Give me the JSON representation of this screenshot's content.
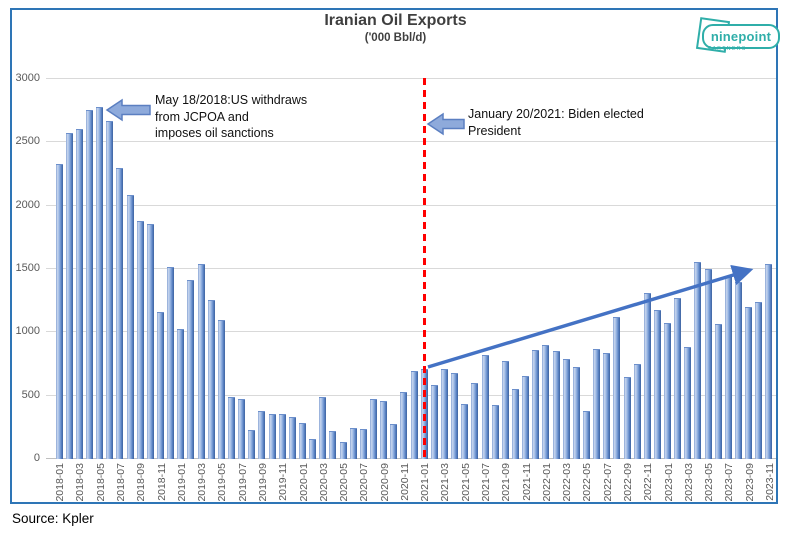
{
  "title": "Iranian Oil Exports",
  "subtitle": "('000 Bbl/d)",
  "source": "Source: Kpler",
  "logo": {
    "name": "ninepoint",
    "sub": "PARTNERS",
    "color": "#2FAEA9"
  },
  "annotations": {
    "jcpoa": {
      "text": "May 18/2018:US withdraws\nfrom JCPOA and\nimposes oil sanctions"
    },
    "biden": {
      "text": "January 20/2021: Biden elected\nPresident"
    }
  },
  "colors": {
    "box_border": "#2E75B6",
    "grid": "#D9D9D9",
    "bar_main": "#4472C4",
    "event_line_red": "#FF0000",
    "trend_arrow_blue": "#4472C4",
    "block_arrow_fill": "#8EAADB",
    "block_arrow_stroke": "#5b7fc1"
  },
  "chart_data": {
    "type": "bar",
    "title": "Iranian Oil Exports",
    "ylabel": "('000 Bbl/d)",
    "ylim": [
      0,
      3000
    ],
    "ytick_step": 500,
    "x_tick_every": 2,
    "grid": true,
    "categories": [
      "2018-01",
      "2018-02",
      "2018-03",
      "2018-04",
      "2018-05",
      "2018-06",
      "2018-07",
      "2018-08",
      "2018-09",
      "2018-10",
      "2018-11",
      "2018-12",
      "2019-01",
      "2019-02",
      "2019-03",
      "2019-04",
      "2019-05",
      "2019-06",
      "2019-07",
      "2019-08",
      "2019-09",
      "2019-10",
      "2019-11",
      "2019-12",
      "2020-01",
      "2020-02",
      "2020-03",
      "2020-04",
      "2020-05",
      "2020-06",
      "2020-07",
      "2020-08",
      "2020-09",
      "2020-10",
      "2020-11",
      "2020-12",
      "2021-01",
      "2021-02",
      "2021-03",
      "2021-04",
      "2021-05",
      "2021-06",
      "2021-07",
      "2021-08",
      "2021-09",
      "2021-10",
      "2021-11",
      "2021-12",
      "2022-01",
      "2022-02",
      "2022-03",
      "2022-04",
      "2022-05",
      "2022-06",
      "2022-07",
      "2022-08",
      "2022-09",
      "2022-10",
      "2022-11",
      "2022-12",
      "2023-01",
      "2023-02",
      "2023-03",
      "2023-04",
      "2023-05",
      "2023-06",
      "2023-07",
      "2023-08",
      "2023-09",
      "2023-10",
      "2023-11"
    ],
    "values": [
      2320,
      2570,
      2600,
      2750,
      2775,
      2660,
      2290,
      2075,
      1870,
      1845,
      1150,
      1510,
      1020,
      1405,
      1530,
      1250,
      1090,
      480,
      465,
      220,
      370,
      345,
      350,
      325,
      280,
      150,
      480,
      210,
      125,
      235,
      230,
      465,
      450,
      265,
      525,
      690,
      705,
      575,
      705,
      675,
      425,
      595,
      815,
      420,
      765,
      545,
      645,
      850,
      890,
      845,
      785,
      715,
      375,
      860,
      830,
      1115,
      640,
      745,
      1300,
      1170,
      1070,
      1265,
      880,
      1545,
      1490,
      1060,
      1440,
      1390,
      1190,
      1230,
      1530
    ],
    "events": [
      {
        "x": "2021-01",
        "label": "January 20/2021: Biden elected President",
        "style": "red-dashed-vertical-line"
      }
    ],
    "event_annotations": [
      {
        "x_period": "2018-05",
        "label": "May 18/2018:US withdraws from JCPOA and imposes oil sanctions"
      }
    ],
    "trend_arrow": {
      "from": {
        "x": "2021-01",
        "y": 700
      },
      "to": {
        "x": "2023-11",
        "y": 1500
      }
    }
  }
}
